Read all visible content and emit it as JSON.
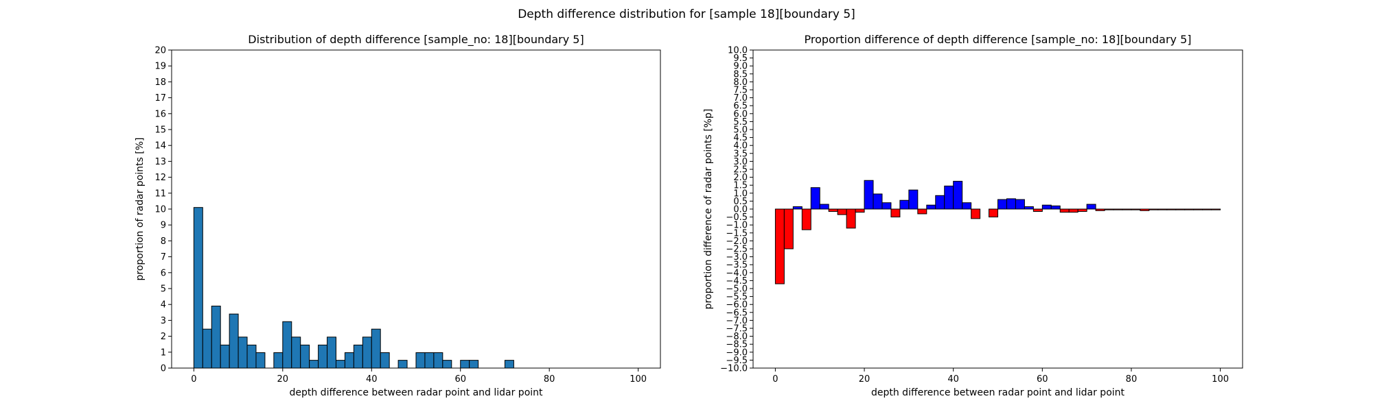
{
  "figure": {
    "suptitle": "Depth difference distribution for [sample 18][boundary 5]"
  },
  "chart_data": [
    {
      "type": "bar",
      "title": "Distribution of depth difference [sample_no: 18][boundary 5]",
      "xlabel": "depth difference between radar point and lidar point",
      "ylabel": "proportion of radar points [%]",
      "xlim": [
        -5,
        105
      ],
      "ylim": [
        0,
        20
      ],
      "xticks": [
        0,
        20,
        40,
        60,
        80,
        100
      ],
      "yticks": [
        0,
        1,
        2,
        3,
        4,
        5,
        6,
        7,
        8,
        9,
        10,
        11,
        12,
        13,
        14,
        15,
        16,
        17,
        18,
        19,
        20
      ],
      "bin_width": 2,
      "bar_color": "#1f77b4",
      "edge_color": "#000000",
      "bins": [
        {
          "x": 0,
          "value": 10.1
        },
        {
          "x": 2,
          "value": 2.45
        },
        {
          "x": 4,
          "value": 3.9
        },
        {
          "x": 6,
          "value": 1.45
        },
        {
          "x": 8,
          "value": 3.4
        },
        {
          "x": 10,
          "value": 1.95
        },
        {
          "x": 12,
          "value": 1.45
        },
        {
          "x": 14,
          "value": 0.97
        },
        {
          "x": 16,
          "value": 0
        },
        {
          "x": 18,
          "value": 0.97
        },
        {
          "x": 20,
          "value": 2.92
        },
        {
          "x": 22,
          "value": 1.95
        },
        {
          "x": 24,
          "value": 1.45
        },
        {
          "x": 26,
          "value": 0.49
        },
        {
          "x": 28,
          "value": 1.45
        },
        {
          "x": 30,
          "value": 1.95
        },
        {
          "x": 32,
          "value": 0.49
        },
        {
          "x": 34,
          "value": 0.97
        },
        {
          "x": 36,
          "value": 1.45
        },
        {
          "x": 38,
          "value": 1.95
        },
        {
          "x": 40,
          "value": 2.45
        },
        {
          "x": 42,
          "value": 0.97
        },
        {
          "x": 44,
          "value": 0
        },
        {
          "x": 46,
          "value": 0.49
        },
        {
          "x": 48,
          "value": 0
        },
        {
          "x": 50,
          "value": 0.97
        },
        {
          "x": 52,
          "value": 0.97
        },
        {
          "x": 54,
          "value": 0.97
        },
        {
          "x": 56,
          "value": 0.49
        },
        {
          "x": 58,
          "value": 0
        },
        {
          "x": 60,
          "value": 0.49
        },
        {
          "x": 62,
          "value": 0.49
        },
        {
          "x": 64,
          "value": 0
        },
        {
          "x": 66,
          "value": 0
        },
        {
          "x": 68,
          "value": 0
        },
        {
          "x": 70,
          "value": 0.49
        }
      ]
    },
    {
      "type": "bar",
      "title": "Proportion difference of depth difference [sample_no: 18][boundary 5]",
      "xlabel": "depth difference between radar point and lidar point",
      "ylabel": "proportion difference of radar points [%p]",
      "xlim": [
        -5,
        105
      ],
      "ylim": [
        -10,
        10
      ],
      "xticks": [
        0,
        20,
        40,
        60,
        80,
        100
      ],
      "yticks": [
        -10.0,
        -9.5,
        -9.0,
        -8.5,
        -8.0,
        -7.5,
        -7.0,
        -6.5,
        -6.0,
        -5.5,
        -5.0,
        -4.5,
        -4.0,
        -3.5,
        -3.0,
        -2.5,
        -2.0,
        -1.5,
        -1.0,
        -0.5,
        0.0,
        0.5,
        1.0,
        1.5,
        2.0,
        2.5,
        3.0,
        3.5,
        4.0,
        4.5,
        5.0,
        5.5,
        6.0,
        6.5,
        7.0,
        7.5,
        8.0,
        8.5,
        9.0,
        9.5,
        10.0
      ],
      "bin_width": 2,
      "positive_color": "#0000ff",
      "negative_color": "#ff0000",
      "edge_color": "#000000",
      "bins": [
        {
          "x": 0,
          "value": -4.7
        },
        {
          "x": 2,
          "value": -2.5
        },
        {
          "x": 4,
          "value": 0.15
        },
        {
          "x": 6,
          "value": -1.3
        },
        {
          "x": 8,
          "value": 1.35
        },
        {
          "x": 10,
          "value": 0.3
        },
        {
          "x": 12,
          "value": -0.15
        },
        {
          "x": 14,
          "value": -0.35
        },
        {
          "x": 16,
          "value": -1.2
        },
        {
          "x": 18,
          "value": -0.2
        },
        {
          "x": 20,
          "value": 1.8
        },
        {
          "x": 22,
          "value": 0.95
        },
        {
          "x": 24,
          "value": 0.4
        },
        {
          "x": 26,
          "value": -0.5
        },
        {
          "x": 28,
          "value": 0.55
        },
        {
          "x": 30,
          "value": 1.2
        },
        {
          "x": 32,
          "value": -0.3
        },
        {
          "x": 34,
          "value": 0.25
        },
        {
          "x": 36,
          "value": 0.85
        },
        {
          "x": 38,
          "value": 1.45
        },
        {
          "x": 40,
          "value": 1.75
        },
        {
          "x": 42,
          "value": 0.4
        },
        {
          "x": 44,
          "value": -0.6
        },
        {
          "x": 46,
          "value": 0
        },
        {
          "x": 48,
          "value": -0.5
        },
        {
          "x": 50,
          "value": 0.6
        },
        {
          "x": 52,
          "value": 0.65
        },
        {
          "x": 54,
          "value": 0.6
        },
        {
          "x": 56,
          "value": 0.15
        },
        {
          "x": 58,
          "value": -0.15
        },
        {
          "x": 60,
          "value": 0.25
        },
        {
          "x": 62,
          "value": 0.2
        },
        {
          "x": 64,
          "value": -0.2
        },
        {
          "x": 66,
          "value": -0.2
        },
        {
          "x": 68,
          "value": -0.15
        },
        {
          "x": 70,
          "value": 0.3
        },
        {
          "x": 72,
          "value": -0.1
        },
        {
          "x": 74,
          "value": -0.05
        },
        {
          "x": 76,
          "value": -0.05
        },
        {
          "x": 78,
          "value": -0.05
        },
        {
          "x": 80,
          "value": -0.05
        },
        {
          "x": 82,
          "value": -0.1
        },
        {
          "x": 84,
          "value": -0.05
        },
        {
          "x": 86,
          "value": -0.05
        },
        {
          "x": 88,
          "value": -0.05
        },
        {
          "x": 90,
          "value": -0.05
        },
        {
          "x": 92,
          "value": -0.05
        },
        {
          "x": 94,
          "value": -0.05
        },
        {
          "x": 96,
          "value": -0.05
        },
        {
          "x": 98,
          "value": -0.05
        }
      ]
    }
  ]
}
